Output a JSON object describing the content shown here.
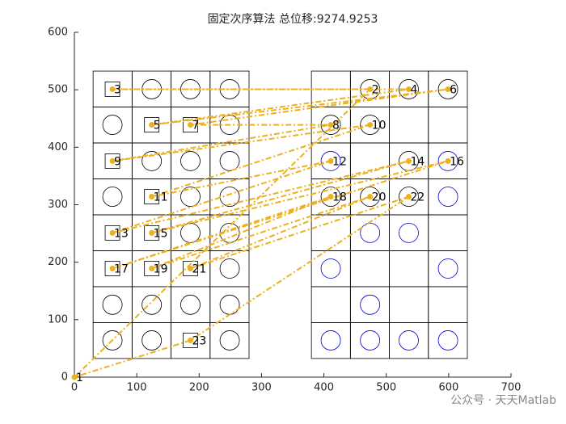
{
  "chart_data": {
    "type": "line",
    "title": "固定次序算法 总位移:9274.9253",
    "watermark": "公众号 · 天天Matlab",
    "xlim": [
      0,
      700
    ],
    "ylim": [
      0,
      600
    ],
    "xticks": [
      0,
      100,
      200,
      300,
      400,
      500,
      600,
      700
    ],
    "yticks": [
      0,
      100,
      200,
      300,
      400,
      500,
      600
    ],
    "cell_size": 62.5,
    "cell_xlim": [
      [
        30,
        280
      ],
      [
        380,
        630
      ]
    ],
    "cell_ylim": [
      32.5,
      532.5
    ],
    "color": "#EDB120",
    "closed": true,
    "point_labels": [
      1,
      2,
      3,
      4,
      5,
      6,
      7,
      8,
      9,
      10,
      11,
      12,
      13,
      14,
      15,
      16,
      17,
      18,
      19,
      20,
      21,
      22,
      23
    ],
    "x": [
      0,
      474,
      61,
      536,
      124,
      599,
      186,
      411,
      61,
      474,
      124,
      411,
      61,
      536,
      124,
      599,
      61,
      411,
      124,
      474,
      186,
      536,
      186
    ],
    "y": [
      0,
      501,
      501,
      501,
      439,
      501,
      439,
      439,
      376,
      439,
      314,
      376,
      251,
      376,
      251,
      376,
      189,
      314,
      189,
      314,
      189,
      314,
      64
    ],
    "squares": {
      "x": [
        61,
        124,
        186,
        61,
        124,
        61,
        124,
        61,
        124,
        186,
        186
      ],
      "y": [
        501,
        439,
        439,
        376,
        314,
        251,
        251,
        189,
        189,
        189,
        64
      ]
    },
    "circles_black": {
      "color": "#000000",
      "x": [
        124,
        186,
        249,
        61,
        249,
        124,
        186,
        249,
        61,
        186,
        249,
        186,
        249,
        249,
        61,
        124,
        186,
        249,
        61,
        124,
        249,
        474,
        536,
        599,
        411,
        474,
        536,
        411,
        474,
        536
      ],
      "y": [
        501,
        501,
        501,
        439,
        439,
        376,
        376,
        376,
        314,
        314,
        314,
        251,
        251,
        189,
        126,
        126,
        126,
        126,
        64,
        64,
        64,
        501,
        501,
        501,
        439,
        439,
        376,
        314,
        314,
        314
      ]
    },
    "circles_blue": {
      "color": "#0000CC",
      "x": [
        411,
        599,
        599,
        474,
        536,
        411,
        599,
        474,
        411,
        474,
        536,
        599
      ],
      "y": [
        376,
        376,
        314,
        251,
        251,
        189,
        189,
        126,
        64,
        64,
        64,
        64
      ]
    }
  }
}
